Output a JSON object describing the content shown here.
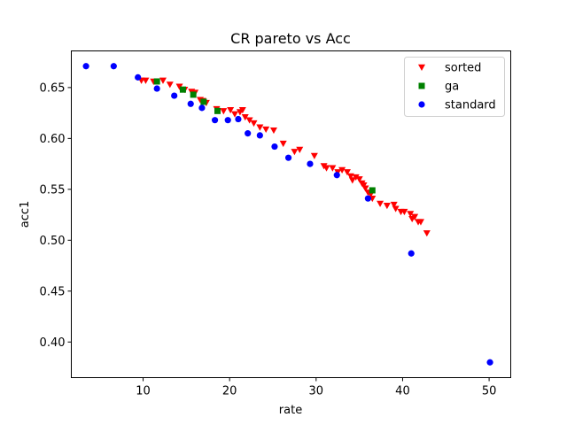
{
  "chart_data": {
    "type": "scatter",
    "title": "CR pareto vs Acc",
    "xlabel": "rate",
    "ylabel": "acc1",
    "xlim": [
      1.7,
      52.5
    ],
    "ylim": [
      0.365,
      0.686
    ],
    "xticks": [
      10,
      20,
      30,
      40,
      50
    ],
    "yticks": [
      0.4,
      0.45,
      0.5,
      0.55,
      0.6,
      0.65
    ],
    "ytick_labels": [
      "0.40",
      "0.45",
      "0.50",
      "0.55",
      "0.60",
      "0.65"
    ],
    "legend_position": "top-right",
    "grid": false,
    "series": [
      {
        "name": "sorted",
        "marker": "triangle-down",
        "color": "#ff0000",
        "points": [
          [
            9.8,
            0.657
          ],
          [
            10.3,
            0.657
          ],
          [
            11.2,
            0.656
          ],
          [
            12.3,
            0.657
          ],
          [
            13.1,
            0.653
          ],
          [
            14.2,
            0.651
          ],
          [
            14.8,
            0.648
          ],
          [
            15.6,
            0.646
          ],
          [
            16.0,
            0.645
          ],
          [
            16.6,
            0.638
          ],
          [
            16.9,
            0.637
          ],
          [
            17.3,
            0.635
          ],
          [
            18.5,
            0.629
          ],
          [
            19.3,
            0.627
          ],
          [
            20.1,
            0.628
          ],
          [
            20.6,
            0.624
          ],
          [
            21.2,
            0.626
          ],
          [
            21.5,
            0.628
          ],
          [
            21.8,
            0.621
          ],
          [
            22.3,
            0.618
          ],
          [
            22.8,
            0.615
          ],
          [
            23.5,
            0.611
          ],
          [
            24.2,
            0.609
          ],
          [
            25.1,
            0.608
          ],
          [
            26.2,
            0.595
          ],
          [
            27.5,
            0.587
          ],
          [
            28.1,
            0.589
          ],
          [
            29.8,
            0.583
          ],
          [
            30.9,
            0.573
          ],
          [
            31.2,
            0.571
          ],
          [
            31.9,
            0.571
          ],
          [
            32.5,
            0.567
          ],
          [
            33.0,
            0.569
          ],
          [
            33.6,
            0.567
          ],
          [
            34.0,
            0.563
          ],
          [
            34.2,
            0.559
          ],
          [
            34.6,
            0.562
          ],
          [
            35.0,
            0.56
          ],
          [
            35.3,
            0.556
          ],
          [
            35.5,
            0.554
          ],
          [
            35.7,
            0.551
          ],
          [
            36.0,
            0.547
          ],
          [
            36.3,
            0.545
          ],
          [
            36.5,
            0.541
          ],
          [
            37.4,
            0.536
          ],
          [
            38.2,
            0.534
          ],
          [
            39.0,
            0.535
          ],
          [
            39.2,
            0.531
          ],
          [
            39.8,
            0.528
          ],
          [
            40.2,
            0.528
          ],
          [
            40.9,
            0.526
          ],
          [
            41.1,
            0.521
          ],
          [
            41.4,
            0.523
          ],
          [
            41.8,
            0.518
          ],
          [
            42.1,
            0.518
          ],
          [
            42.8,
            0.507
          ]
        ]
      },
      {
        "name": "ga",
        "marker": "square",
        "color": "#008000",
        "points": [
          [
            11.6,
            0.656
          ],
          [
            14.6,
            0.648
          ],
          [
            15.8,
            0.643
          ],
          [
            17.0,
            0.636
          ],
          [
            18.6,
            0.627
          ],
          [
            36.5,
            0.549
          ]
        ]
      },
      {
        "name": "standard",
        "marker": "circle",
        "color": "#0000ff",
        "points": [
          [
            3.4,
            0.671
          ],
          [
            6.6,
            0.671
          ],
          [
            9.4,
            0.66
          ],
          [
            11.6,
            0.649
          ],
          [
            13.6,
            0.642
          ],
          [
            15.5,
            0.634
          ],
          [
            16.8,
            0.63
          ],
          [
            18.3,
            0.618
          ],
          [
            19.8,
            0.618
          ],
          [
            21.0,
            0.619
          ],
          [
            22.1,
            0.605
          ],
          [
            23.5,
            0.603
          ],
          [
            25.2,
            0.592
          ],
          [
            26.8,
            0.581
          ],
          [
            29.3,
            0.575
          ],
          [
            32.4,
            0.564
          ],
          [
            36.0,
            0.541
          ],
          [
            41.0,
            0.487
          ],
          [
            50.1,
            0.38
          ]
        ]
      }
    ]
  }
}
